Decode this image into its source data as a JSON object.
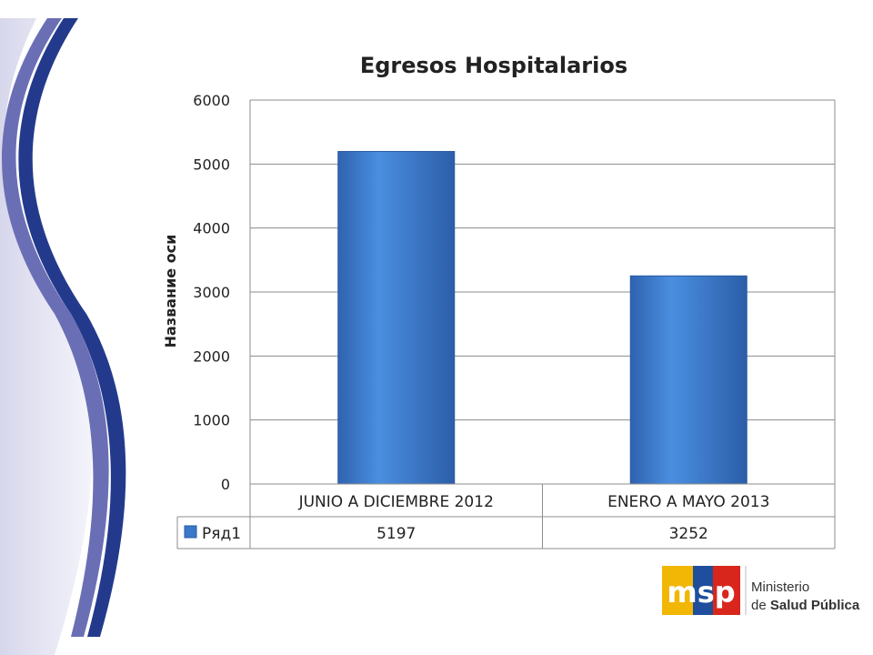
{
  "chart_data": {
    "type": "bar",
    "title": "Egresos Hospitalarios",
    "ylabel": "Название оси",
    "xlabel": "",
    "categories": [
      "JUNIO A DICIEMBRE 2012",
      "ENERO A MAYO 2013"
    ],
    "series": [
      {
        "name": "Ряд1",
        "values": [
          5197,
          3252
        ],
        "color": "#3a78c9"
      }
    ],
    "ylim": [
      0,
      6000
    ],
    "yticks": [
      "0",
      "1000",
      "2000",
      "3000",
      "4000",
      "5000",
      "6000"
    ],
    "grid": true,
    "legend": "data-table"
  },
  "logo": {
    "mark_text": "msp",
    "line1": "Ministerio",
    "line2_prefix": "de ",
    "line2_bold": "Salud Pública",
    "colors": {
      "yellow": "#f2b705",
      "blue": "#1f4e9c",
      "red": "#d9261c"
    }
  },
  "decor": {
    "stripe_dark": "#233a8c",
    "stripe_mid": "#6a6fb5",
    "stripe_light": "#c9c9e6"
  }
}
